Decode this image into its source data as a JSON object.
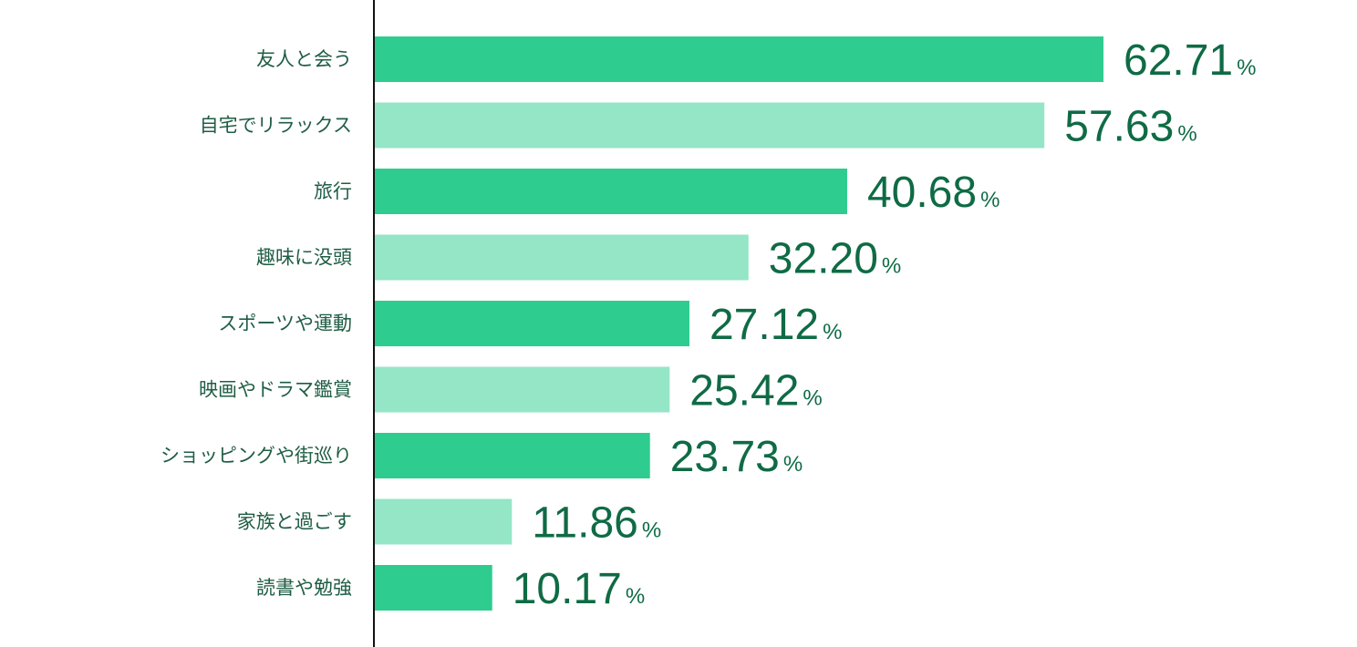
{
  "chart_data": {
    "type": "bar",
    "orientation": "horizontal",
    "categories": [
      "友人と会う",
      "自宅でリラックス",
      "旅行",
      "趣味に没頭",
      "スポーツや運動",
      "映画やドラマ鑑賞",
      "ショッピングや街巡り",
      "家族と過ごす",
      "読書や勉強"
    ],
    "values": [
      62.71,
      57.63,
      40.68,
      32.2,
      27.12,
      25.42,
      23.73,
      11.86,
      10.17
    ],
    "value_labels": [
      "62.71",
      "57.63",
      "40.68",
      "32.20",
      "27.12",
      "25.42",
      "23.73",
      "11.86",
      "10.17"
    ],
    "unit": "%",
    "xlim": [
      0,
      85
    ],
    "grid": false,
    "legend": "none",
    "colors": {
      "bar_primary": "#2ecc8f",
      "bar_secondary": "#94e6c6",
      "value_text": "#0f6b45",
      "label_text": "#1f5d45",
      "axis": "#111111"
    }
  }
}
